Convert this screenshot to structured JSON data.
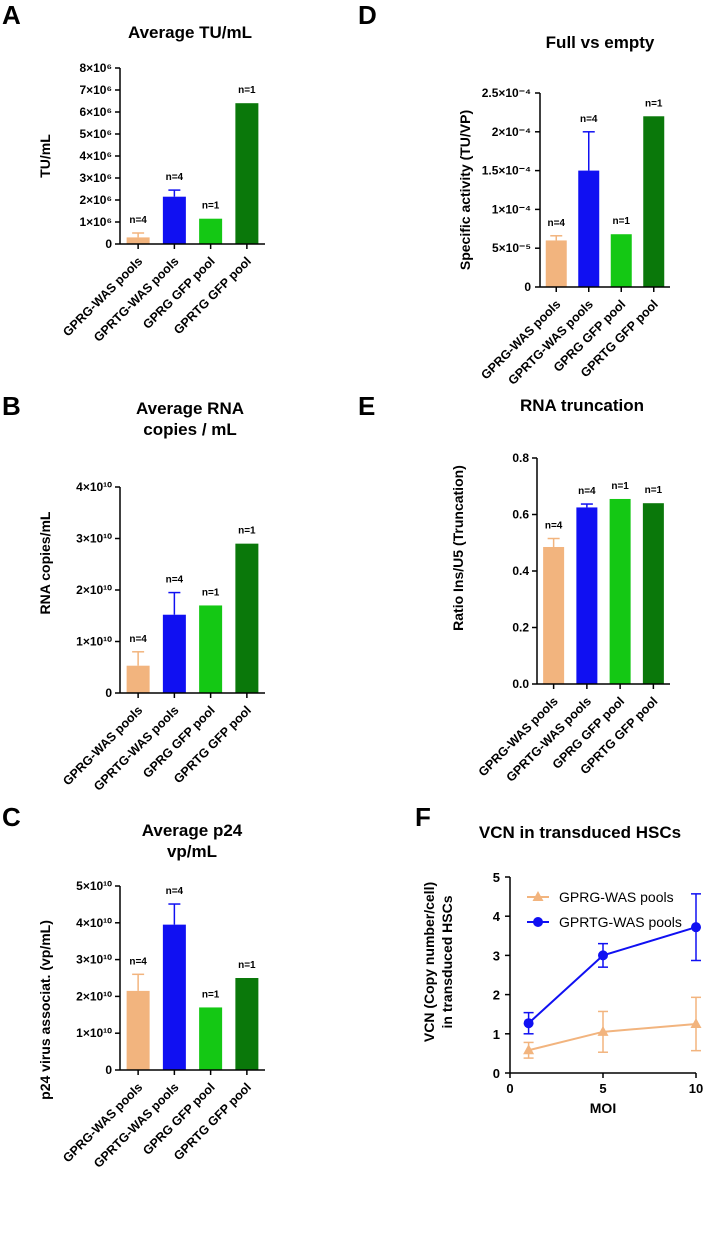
{
  "panels": [
    {
      "letter": "A",
      "title": [
        "Average TU/mL"
      ],
      "ylabel": [
        "TU/mL"
      ]
    },
    {
      "letter": "D",
      "title": [
        "Full vs empty"
      ],
      "ylabel": [
        "Specific activity (TU/VP)"
      ]
    },
    {
      "letter": "B",
      "title": [
        "Average RNA",
        "copies / mL"
      ],
      "ylabel": [
        "RNA copies/mL"
      ]
    },
    {
      "letter": "E",
      "title": [
        "RNA truncation"
      ],
      "ylabel": [
        "Ratio Ins/U5 (Truncation)"
      ]
    },
    {
      "letter": "C",
      "title": [
        "Average p24",
        "vp/mL"
      ],
      "ylabel": [
        "p24 virus associat. (vp/mL)"
      ]
    },
    {
      "letter": "F",
      "title": [
        "VCN in transduced HSCs"
      ],
      "ylabel": [
        "VCN (Copy number/cell)",
        "in transduced HSCs"
      ]
    }
  ],
  "colors": {
    "GPRG-WAS pools": "#f2b47e",
    "GPRTG-WAS pools": "#1010f2",
    "GPRG GFP pool": "#14c814",
    "GPRTG GFP pool": "#0a780a"
  },
  "chart_data": [
    {
      "id": "A",
      "type": "bar",
      "title": "Average TU/mL",
      "ylabel": "TU/mL",
      "categories": [
        "GPRG-WAS pools",
        "GPRTG-WAS pools",
        "GPRG GFP pool",
        "GPRTG GFP pool"
      ],
      "values": [
        300000,
        2150000,
        1150000,
        6400000
      ],
      "errors": [
        200000,
        300000,
        null,
        null
      ],
      "n_labels": [
        "n=4",
        "n=4",
        "n=1",
        "n=1"
      ],
      "ylim": [
        0,
        8000000
      ],
      "yticks": [
        0,
        1000000,
        2000000,
        3000000,
        4000000,
        5000000,
        6000000,
        7000000,
        8000000
      ],
      "ytick_labels": [
        "0",
        "1×10⁶",
        "2×10⁶",
        "3×10⁶",
        "4×10⁶",
        "5×10⁶",
        "6×10⁶",
        "7×10⁶",
        "8×10⁶"
      ]
    },
    {
      "id": "D",
      "type": "bar",
      "title": "Full vs empty",
      "ylabel": "Specific activity (TU/VP)",
      "categories": [
        "GPRG-WAS pools",
        "GPRTG-WAS pools",
        "GPRG GFP pool",
        "GPRTG GFP pool"
      ],
      "values": [
        6e-05,
        0.00015,
        6.8e-05,
        0.00022
      ],
      "errors": [
        6e-06,
        5e-05,
        null,
        null
      ],
      "n_labels": [
        "n=4",
        "n=4",
        "n=1",
        "n=1"
      ],
      "ylim": [
        0,
        0.00025
      ],
      "yticks": [
        0,
        5e-05,
        0.0001,
        0.00015,
        0.0002,
        0.00025
      ],
      "ytick_labels": [
        "0",
        "5×10⁻⁵",
        "1×10⁻⁴",
        "1.5×10⁻⁴",
        "2×10⁻⁴",
        "2.5×10⁻⁴"
      ]
    },
    {
      "id": "B",
      "type": "bar",
      "title": "Average RNA copies / mL",
      "ylabel": "RNA copies/mL",
      "categories": [
        "GPRG-WAS pools",
        "GPRTG-WAS pools",
        "GPRG GFP pool",
        "GPRTG GFP pool"
      ],
      "values": [
        5300000000,
        15200000000,
        17000000000,
        29000000000
      ],
      "errors": [
        2700000000,
        4300000000,
        null,
        null
      ],
      "n_labels": [
        "n=4",
        "n=4",
        "n=1",
        "n=1"
      ],
      "ylim": [
        0,
        40000000000
      ],
      "yticks": [
        0,
        10000000000,
        20000000000,
        30000000000,
        40000000000
      ],
      "ytick_labels": [
        "0",
        "1×10¹⁰",
        "2×10¹⁰",
        "3×10¹⁰",
        "4×10¹⁰"
      ]
    },
    {
      "id": "E",
      "type": "bar",
      "title": "RNA truncation",
      "ylabel": "Ratio Ins/U5 (Truncation)",
      "categories": [
        "GPRG-WAS pools",
        "GPRTG-WAS pools",
        "GPRG GFP pool",
        "GPRTG GFP pool"
      ],
      "values": [
        0.485,
        0.625,
        0.655,
        0.64
      ],
      "errors": [
        0.03,
        0.012,
        null,
        null
      ],
      "n_labels": [
        "n=4",
        "n=4",
        "n=1",
        "n=1"
      ],
      "ylim": [
        0,
        0.8
      ],
      "yticks": [
        0,
        0.2,
        0.4,
        0.6,
        0.8
      ],
      "ytick_labels": [
        "0.0",
        "0.2",
        "0.4",
        "0.6",
        "0.8"
      ]
    },
    {
      "id": "C",
      "type": "bar",
      "title": "Average p24 vp/mL",
      "ylabel": "p24 virus associat. (vp/mL)",
      "categories": [
        "GPRG-WAS pools",
        "GPRTG-WAS pools",
        "GPRG GFP pool",
        "GPRTG GFP pool"
      ],
      "values": [
        21500000000,
        39500000000,
        17000000000,
        25000000000
      ],
      "errors": [
        4500000000,
        5600000000,
        null,
        null
      ],
      "n_labels": [
        "n=4",
        "n=4",
        "n=1",
        "n=1"
      ],
      "ylim": [
        0,
        50000000000
      ],
      "yticks": [
        0,
        10000000000,
        20000000000,
        30000000000,
        40000000000,
        50000000000
      ],
      "ytick_labels": [
        "0",
        "1×10¹⁰",
        "2×10¹⁰",
        "3×10¹⁰",
        "4×10¹⁰",
        "5×10¹⁰"
      ]
    },
    {
      "id": "F",
      "type": "line",
      "title": "VCN in transduced HSCs",
      "xlabel": "MOI",
      "ylabel": "VCN (Copy number/cell) in transduced HSCs",
      "x": [
        1,
        5,
        10
      ],
      "xlim": [
        0,
        10
      ],
      "xticks": [
        0,
        5,
        10
      ],
      "ylim": [
        0,
        5
      ],
      "yticks": [
        0,
        1,
        2,
        3,
        4,
        5
      ],
      "legend_position": "top-left",
      "series": [
        {
          "name": "GPRG-WAS pools",
          "values": [
            0.58,
            1.05,
            1.25
          ],
          "errors": [
            0.2,
            0.52,
            0.68
          ],
          "marker": "triangle",
          "color": "#f2b47e"
        },
        {
          "name": "GPRTG-WAS pools",
          "values": [
            1.27,
            3.0,
            3.72
          ],
          "errors": [
            0.27,
            0.3,
            0.85
          ],
          "marker": "circle",
          "color": "#1010f2"
        }
      ]
    }
  ]
}
